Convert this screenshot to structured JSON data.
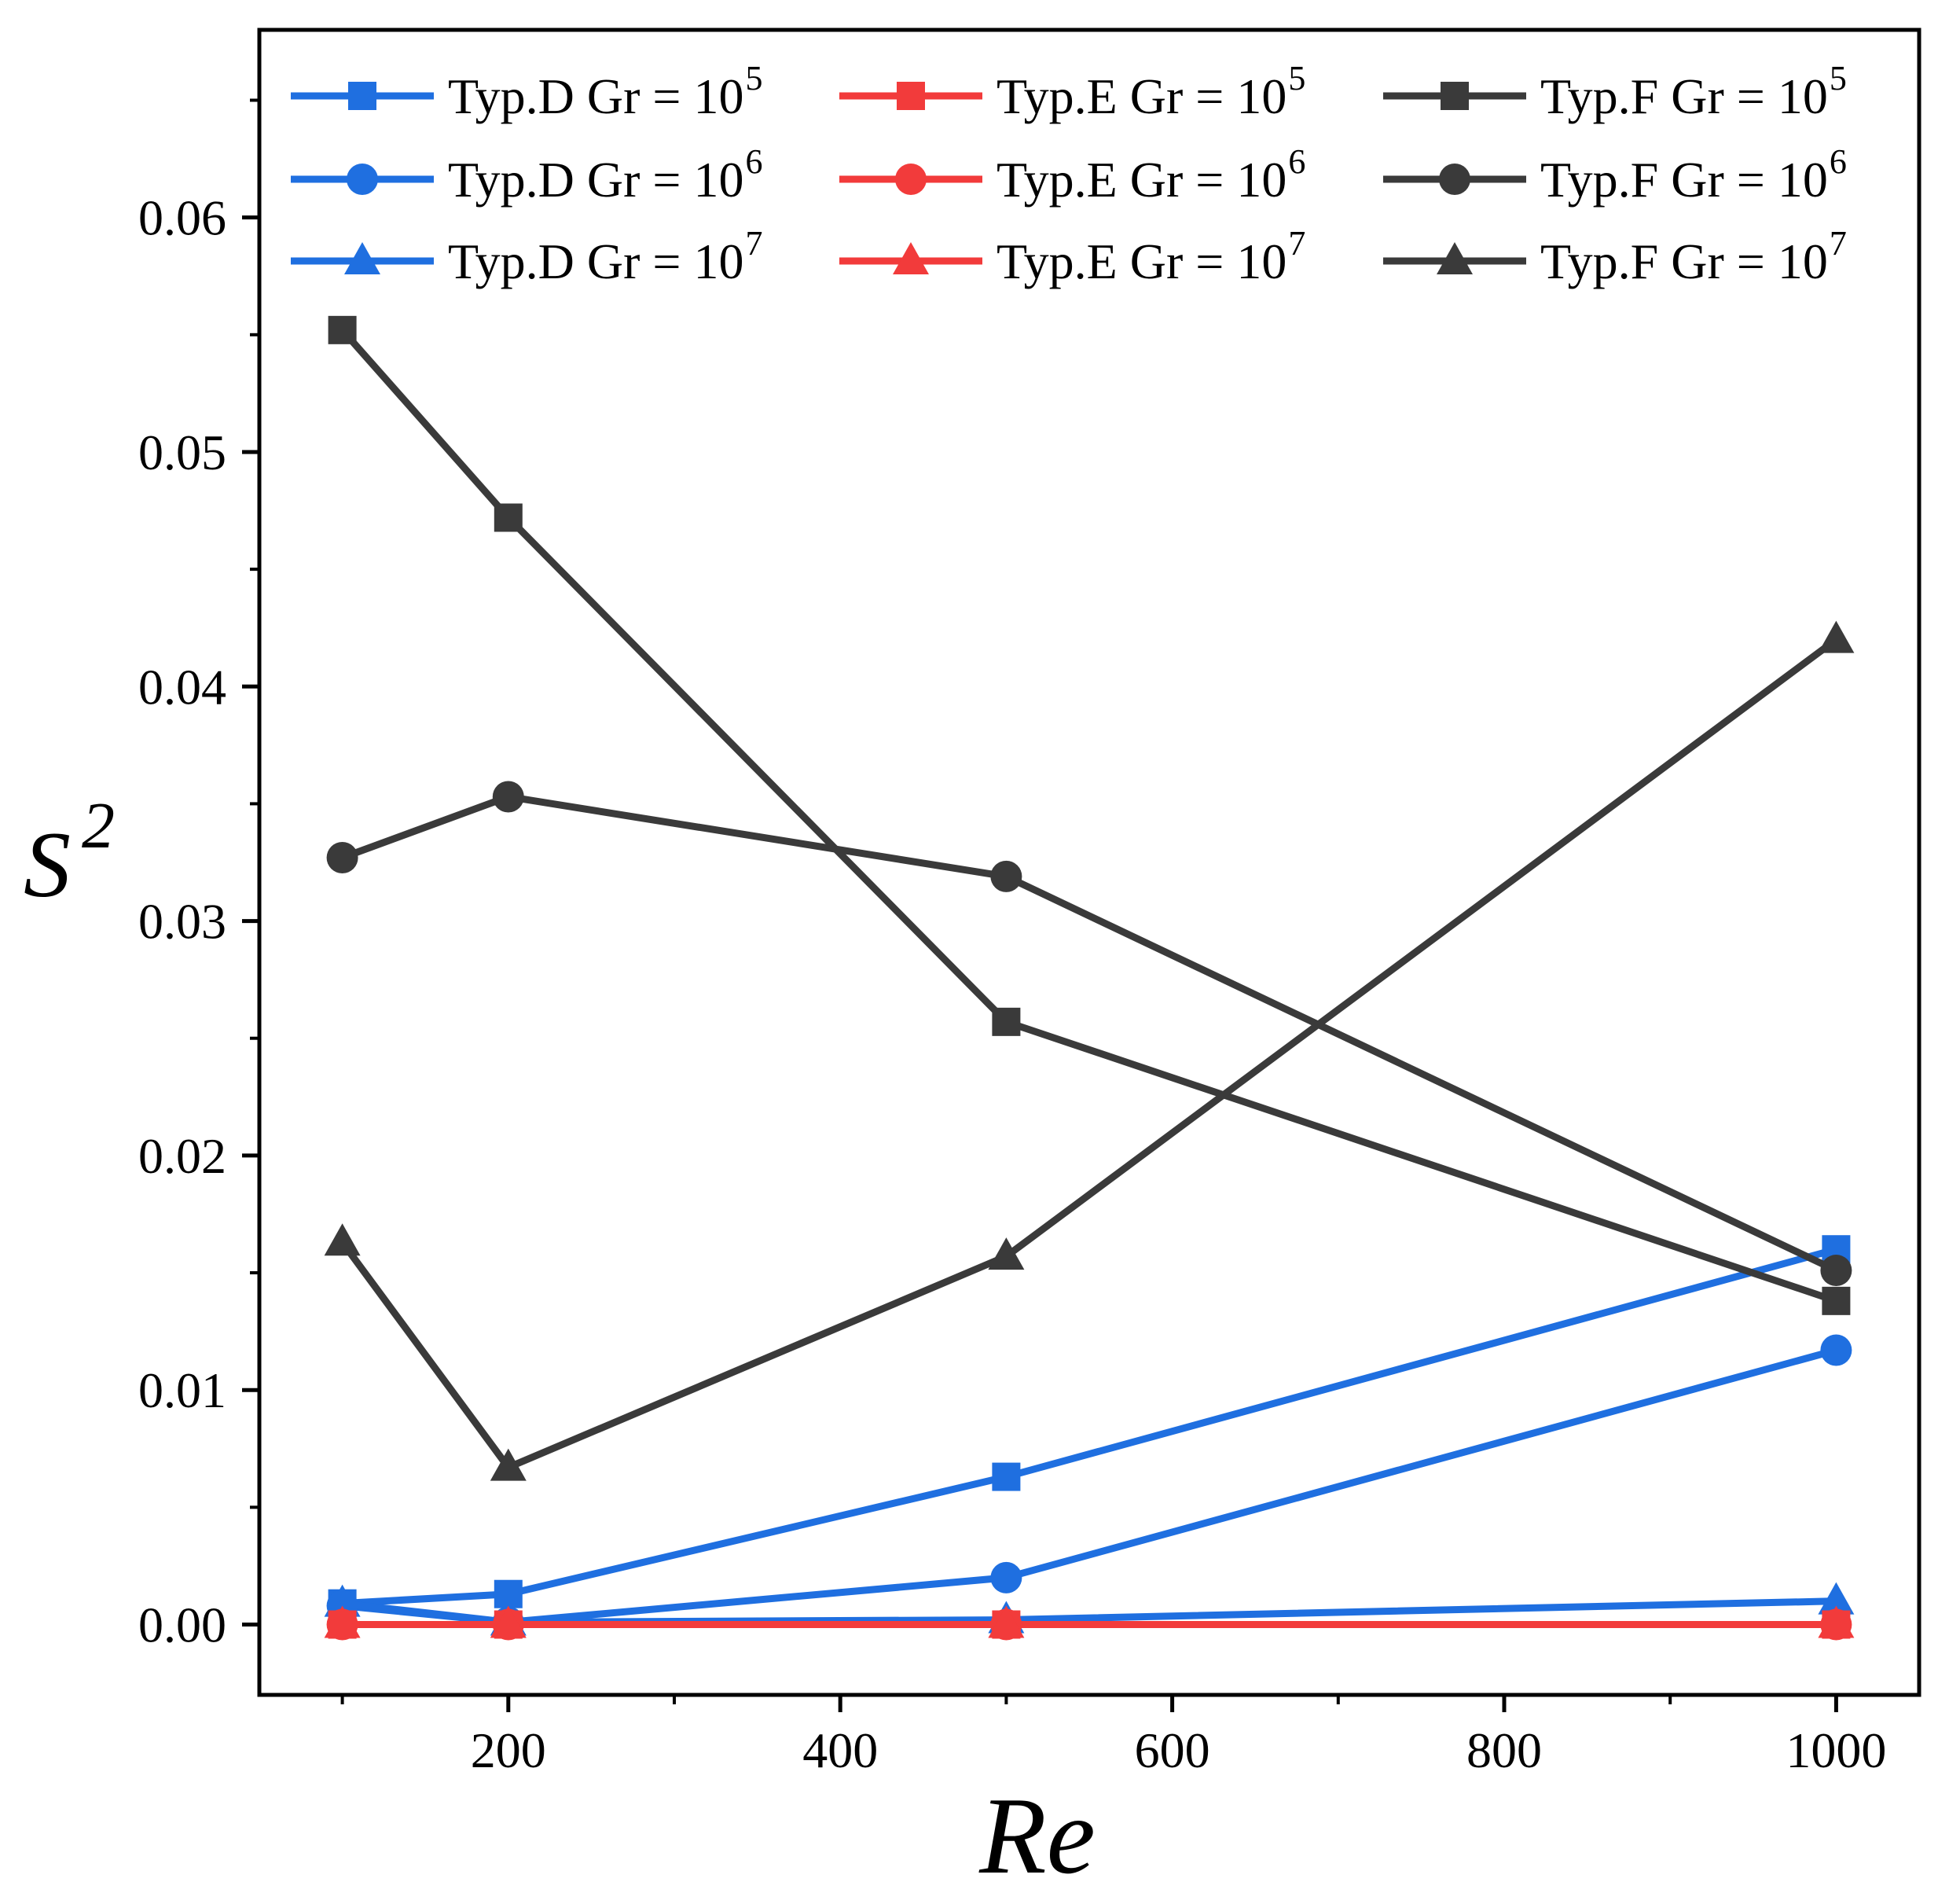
{
  "chart_data": {
    "type": "line",
    "title": "",
    "xlabel": "Re",
    "ylabel": "S",
    "ylabel_superscript": "2",
    "xlim": [
      50,
      1050
    ],
    "ylim": [
      -0.003,
      0.068
    ],
    "x_ticks": [
      200,
      400,
      600,
      800,
      1000
    ],
    "x_tick_labels": [
      "200",
      "400",
      "600",
      "800",
      "1000"
    ],
    "y_ticks": [
      0.0,
      0.01,
      0.02,
      0.03,
      0.04,
      0.05,
      0.06
    ],
    "y_tick_labels": [
      "0.00",
      "0.01",
      "0.02",
      "0.03",
      "0.04",
      "0.05",
      "0.06"
    ],
    "grid": false,
    "legend_position": "top",
    "x": [
      100,
      200,
      500,
      1000
    ],
    "series": [
      {
        "name": "Typ.D Gr = 10",
        "sup": "5",
        "color": "#1f6fe0",
        "marker": "square",
        "values": [
          0.0009,
          0.0013,
          0.0063,
          0.016
        ]
      },
      {
        "name": "Typ.E Gr = 10",
        "sup": "5",
        "color": "#f23b3b",
        "marker": "square",
        "values": [
          0.0,
          0.0,
          0.0,
          0.0
        ]
      },
      {
        "name": "Typ.F Gr = 10",
        "sup": "5",
        "color": "#3a3a3a",
        "marker": "square",
        "values": [
          0.0552,
          0.0472,
          0.0257,
          0.0138
        ]
      },
      {
        "name": "Typ.D Gr = 10",
        "sup": "6",
        "color": "#1f6fe0",
        "marker": "circle",
        "values": [
          0.0008,
          0.0001,
          0.002,
          0.0117
        ]
      },
      {
        "name": "Typ.E Gr = 10",
        "sup": "6",
        "color": "#f23b3b",
        "marker": "circle",
        "values": [
          0.0,
          0.0,
          0.0,
          0.0
        ]
      },
      {
        "name": "Typ.F Gr = 10",
        "sup": "6",
        "color": "#3a3a3a",
        "marker": "circle",
        "values": [
          0.0327,
          0.0353,
          0.0319,
          0.0151
        ]
      },
      {
        "name": "Typ.D Gr = 10",
        "sup": "7",
        "color": "#1f6fe0",
        "marker": "triangle",
        "values": [
          0.0009,
          0.0001,
          0.0002,
          0.001
        ]
      },
      {
        "name": "Typ.E Gr = 10",
        "sup": "7",
        "color": "#f23b3b",
        "marker": "triangle",
        "values": [
          0.0,
          0.0,
          0.0,
          0.0
        ]
      },
      {
        "name": "Typ.F Gr = 10",
        "sup": "7",
        "color": "#3a3a3a",
        "marker": "triangle",
        "values": [
          0.0163,
          0.0067,
          0.0157,
          0.042
        ]
      }
    ]
  }
}
